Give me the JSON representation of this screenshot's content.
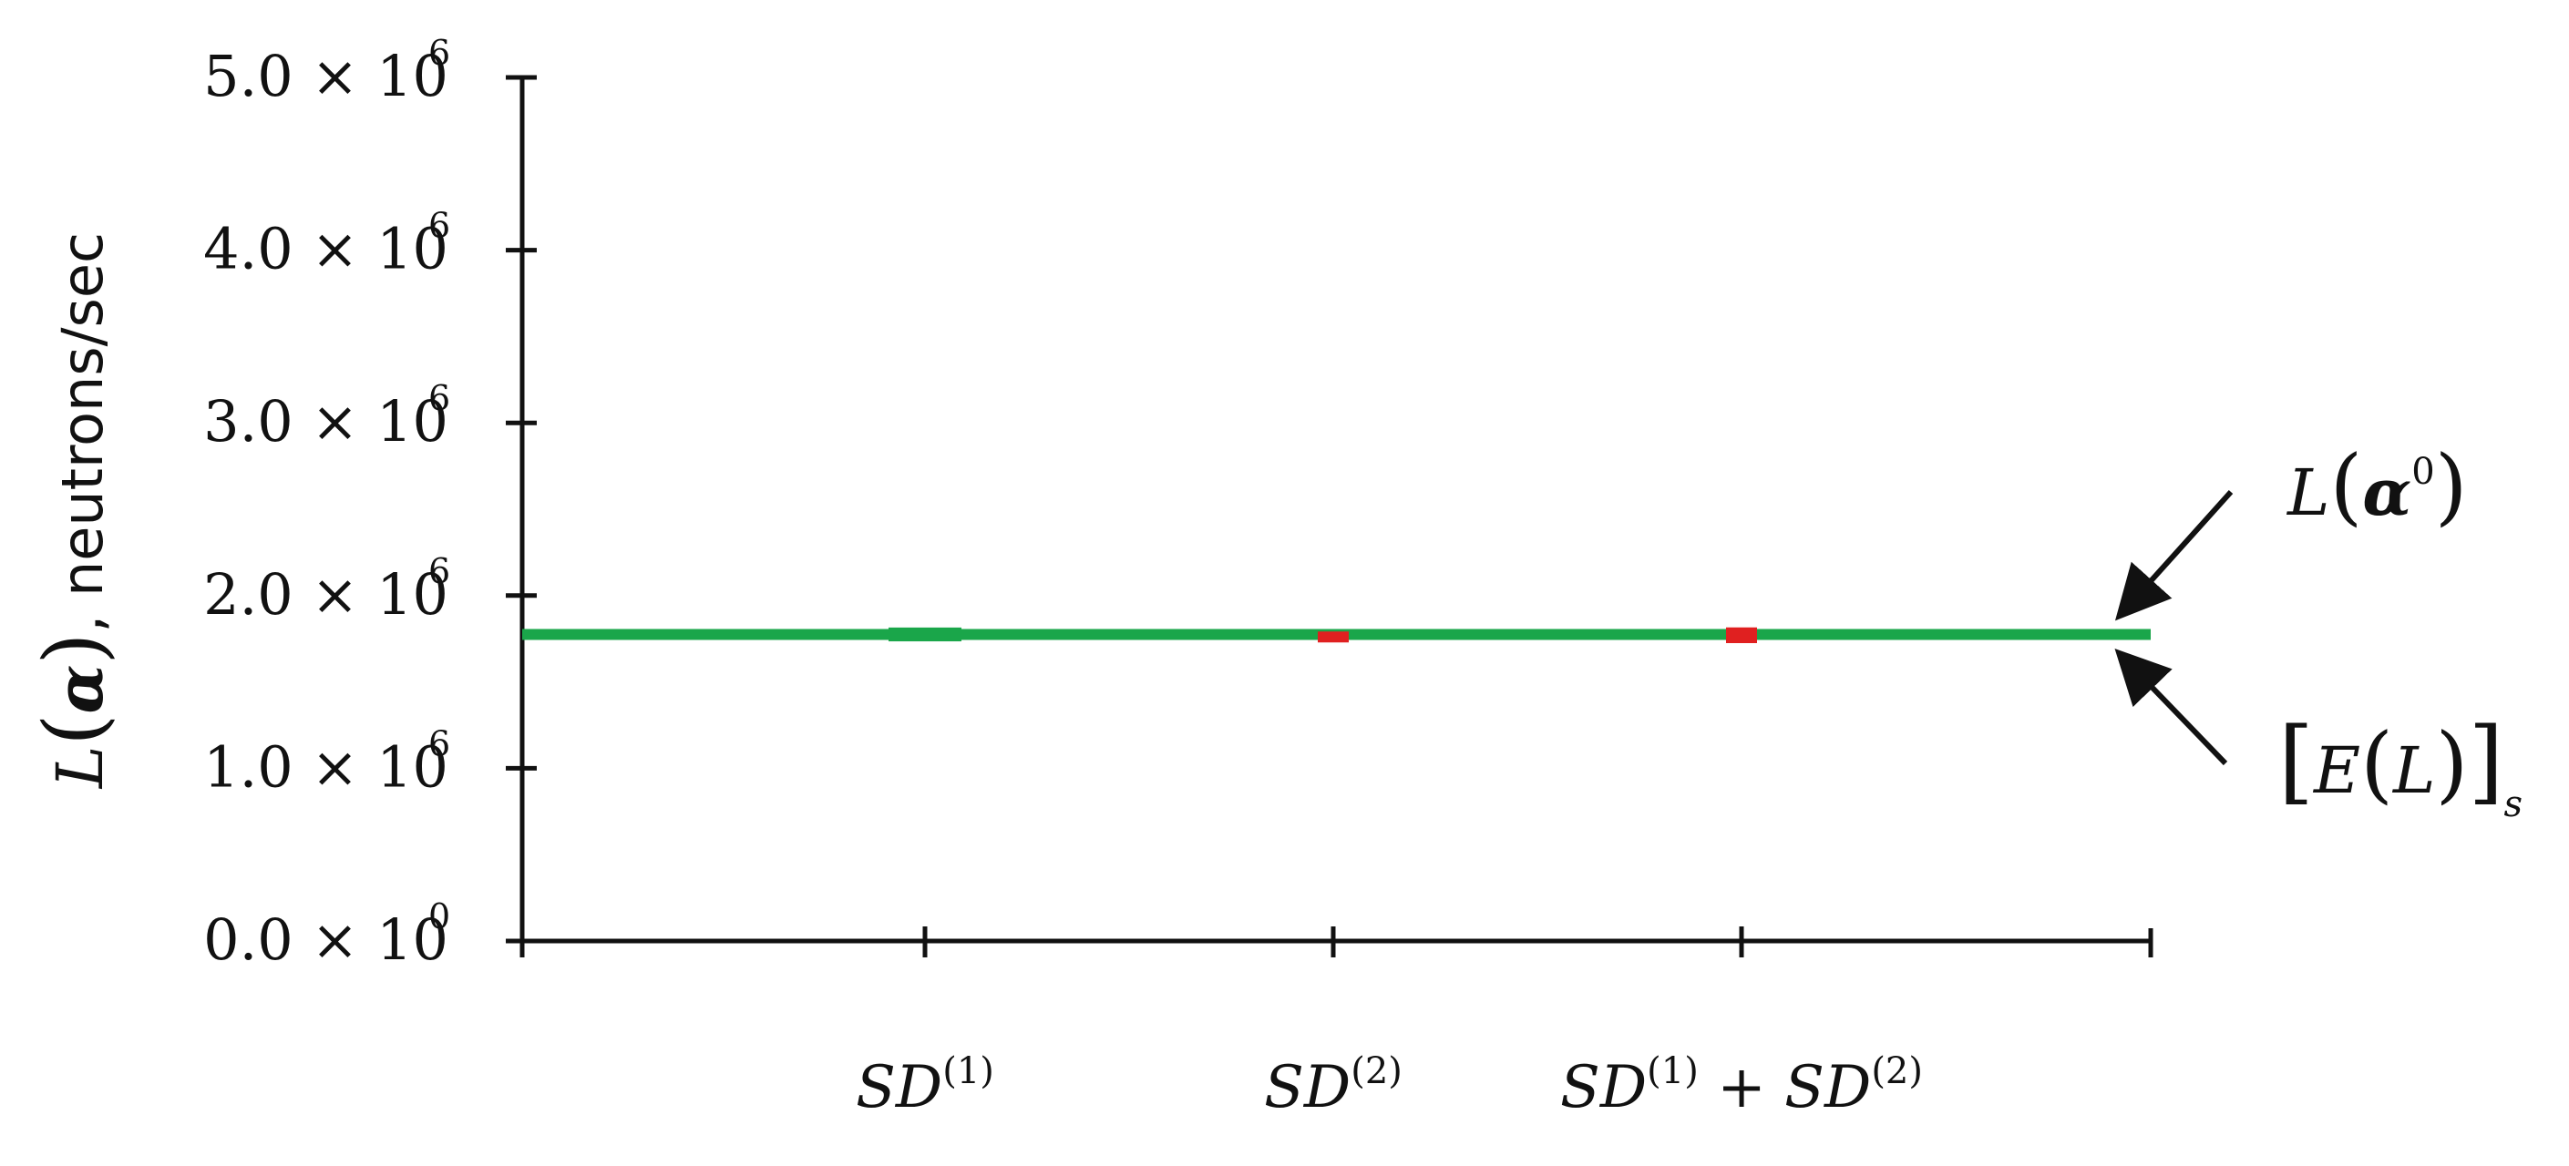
{
  "chart_data": {
    "type": "line",
    "xlabel": "",
    "ylabel_parts": {
      "func": "L",
      "arg": "α",
      "rest": ", neutrons/sec"
    },
    "categories": [
      {
        "base": "SD",
        "sup": "(1)"
      },
      {
        "base": "SD",
        "sup": "(2)"
      },
      {
        "base": "SD",
        "sup": "(1)",
        "plus": "+",
        "base2": "SD",
        "sup2": "(2)"
      }
    ],
    "ylim": [
      0,
      5000000
    ],
    "yticks": [
      {
        "value": 0,
        "mantissa": "0.0",
        "times": "×",
        "base": "10",
        "exp": "0"
      },
      {
        "value": 1000000,
        "mantissa": "1.0",
        "times": "×",
        "base": "10",
        "exp": "6"
      },
      {
        "value": 2000000,
        "mantissa": "2.0",
        "times": "×",
        "base": "10",
        "exp": "6"
      },
      {
        "value": 3000000,
        "mantissa": "3.0",
        "times": "×",
        "base": "10",
        "exp": "6"
      },
      {
        "value": 4000000,
        "mantissa": "4.0",
        "times": "×",
        "base": "10",
        "exp": "6"
      },
      {
        "value": 5000000,
        "mantissa": "5.0",
        "times": "×",
        "base": "10",
        "exp": "6"
      }
    ],
    "series": [
      {
        "value": 1775000,
        "color": "#1aa64a"
      },
      {
        "value": 1770000,
        "color": "#e02020"
      }
    ],
    "markers": [
      {
        "category": 0,
        "value": 1775000,
        "error": 40000,
        "color": "#1aa64a"
      },
      {
        "category": 1,
        "value": 1760000,
        "error": 15000,
        "color": "#e02020"
      },
      {
        "category": 2,
        "value": 1770000,
        "error": 35000,
        "color": "#e02020"
      }
    ],
    "annotations": [
      {
        "text_parts": [
          "L",
          "(",
          "α",
          "0",
          ")"
        ],
        "points_to": "upper"
      },
      {
        "text_parts": [
          "[",
          "E",
          "(",
          "L",
          ")",
          "]",
          "s"
        ],
        "points_to": "lower"
      }
    ],
    "grid": false,
    "legend": "none"
  }
}
